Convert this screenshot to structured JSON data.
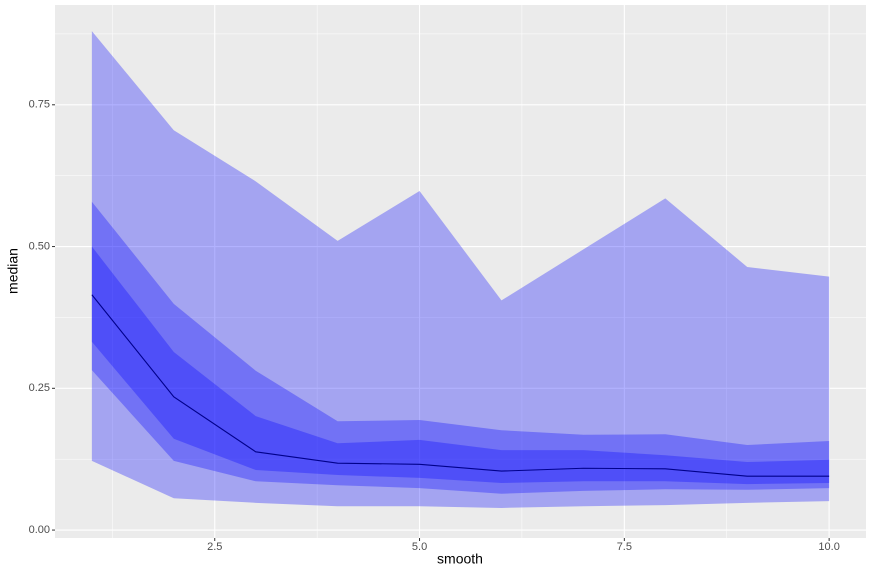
{
  "chart_data": {
    "type": "line",
    "x_label": "smooth",
    "y_label": "median",
    "x": [
      1,
      2,
      3,
      4,
      5,
      6,
      7,
      8,
      9,
      10
    ],
    "bands": [
      {
        "color": "#0000ff",
        "opacity": 0.3,
        "upper": [
          0.88,
          0.705,
          0.615,
          0.51,
          0.598,
          0.405,
          0.495,
          0.585,
          0.464,
          0.447
        ],
        "lower": [
          0.122,
          0.056,
          0.048,
          0.042,
          0.042,
          0.039,
          0.042,
          0.044,
          0.048,
          0.051
        ]
      },
      {
        "color": "#0000ff",
        "opacity": 0.3,
        "upper": [
          0.579,
          0.399,
          0.281,
          0.192,
          0.194,
          0.176,
          0.168,
          0.169,
          0.15,
          0.157
        ],
        "lower": [
          0.282,
          0.122,
          0.086,
          0.079,
          0.074,
          0.064,
          0.069,
          0.072,
          0.071,
          0.074
        ]
      },
      {
        "color": "#0000ff",
        "opacity": 0.3,
        "upper": [
          0.5,
          0.314,
          0.201,
          0.153,
          0.159,
          0.141,
          0.141,
          0.132,
          0.12,
          0.124
        ],
        "lower": [
          0.332,
          0.161,
          0.106,
          0.097,
          0.092,
          0.083,
          0.086,
          0.086,
          0.081,
          0.083
        ]
      }
    ],
    "series": [
      {
        "color": "#00008b",
        "values": [
          0.415,
          0.235,
          0.138,
          0.118,
          0.116,
          0.104,
          0.109,
          0.108,
          0.095,
          0.095
        ]
      }
    ],
    "xlim": [
      0.55,
      10.45
    ],
    "ylim": [
      -0.014,
      0.926
    ],
    "xticks": [
      {
        "value": 2.5,
        "label": "2.5"
      },
      {
        "value": 5,
        "label": "5.0"
      },
      {
        "value": 7.5,
        "label": "7.5"
      },
      {
        "value": 10,
        "label": "10.0"
      }
    ],
    "yticks": [
      {
        "value": 0,
        "label": "0.00"
      },
      {
        "value": 0.25,
        "label": "0.25"
      },
      {
        "value": 0.5,
        "label": "0.50"
      },
      {
        "value": 0.75,
        "label": "0.75"
      }
    ],
    "xminor": [
      1.25,
      3.75,
      6.25,
      8.75
    ],
    "yminor": [
      0.125,
      0.375,
      0.625,
      0.875
    ],
    "grid": true,
    "panel_color": "#ebebeb"
  }
}
